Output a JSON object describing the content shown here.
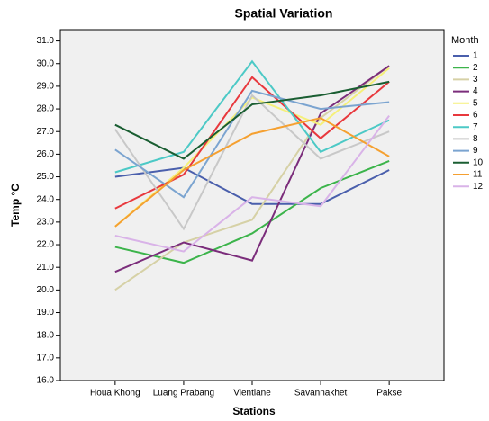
{
  "chart_data": {
    "type": "line",
    "title": "Spatial Variation",
    "x_label": "Stations",
    "y_label": "Temp °C",
    "legend_title": "Month",
    "legend_position": "right",
    "categories": [
      "Houa Khong",
      "Luang Prabang",
      "Vientiane",
      "Savannakhet",
      "Pakse"
    ],
    "ylim": [
      16,
      31.5
    ],
    "yticks": [
      {
        "value": 16,
        "label": "16.0"
      },
      {
        "value": 17,
        "label": "17.0"
      },
      {
        "value": 18,
        "label": "18.0"
      },
      {
        "value": 19,
        "label": "19.0"
      },
      {
        "value": 20,
        "label": "20.0"
      },
      {
        "value": 21,
        "label": "21.0"
      },
      {
        "value": 22,
        "label": "22.0"
      },
      {
        "value": 23,
        "label": "23.0"
      },
      {
        "value": 24,
        "label": "24.0"
      },
      {
        "value": 25,
        "label": "25.0"
      },
      {
        "value": 26,
        "label": "26.0"
      },
      {
        "value": 27,
        "label": "27.0"
      },
      {
        "value": 28,
        "label": "28.0"
      },
      {
        "value": 29,
        "label": "29.0"
      },
      {
        "value": 30,
        "label": "30.0"
      },
      {
        "value": 31,
        "label": "31.0"
      }
    ],
    "series": [
      {
        "name": "1",
        "color": "#4a5fac",
        "values": [
          25.0,
          25.4,
          23.8,
          23.8,
          25.3
        ]
      },
      {
        "name": "2",
        "color": "#3cb44b",
        "values": [
          21.9,
          21.2,
          22.5,
          24.5,
          25.7
        ]
      },
      {
        "name": "3",
        "color": "#d6d1a6",
        "values": [
          20.0,
          22.1,
          23.1,
          27.6,
          29.9
        ]
      },
      {
        "name": "4",
        "color": "#7b2d7b",
        "values": [
          20.8,
          22.1,
          21.3,
          27.8,
          29.9
        ]
      },
      {
        "name": "5",
        "color": "#f5f07a",
        "values": [
          22.8,
          25.4,
          28.5,
          27.3,
          29.8
        ]
      },
      {
        "name": "6",
        "color": "#e8383d",
        "values": [
          23.6,
          25.1,
          29.4,
          26.7,
          29.2
        ]
      },
      {
        "name": "7",
        "color": "#4cc9c6",
        "values": [
          25.2,
          26.1,
          30.1,
          26.1,
          27.5
        ]
      },
      {
        "name": "8",
        "color": "#c8c8c8",
        "values": [
          27.1,
          22.7,
          28.6,
          25.8,
          27.0
        ]
      },
      {
        "name": "9",
        "color": "#7ba4d0",
        "values": [
          26.2,
          24.1,
          28.8,
          28.0,
          28.3
        ]
      },
      {
        "name": "10",
        "color": "#1a5e32",
        "values": [
          27.3,
          25.8,
          28.2,
          28.6,
          29.2
        ]
      },
      {
        "name": "11",
        "color": "#f5a030",
        "values": [
          22.8,
          25.3,
          26.9,
          27.6,
          25.9
        ]
      },
      {
        "name": "12",
        "color": "#d9b3e8",
        "values": [
          22.4,
          21.7,
          24.1,
          23.7,
          27.7
        ]
      }
    ]
  }
}
